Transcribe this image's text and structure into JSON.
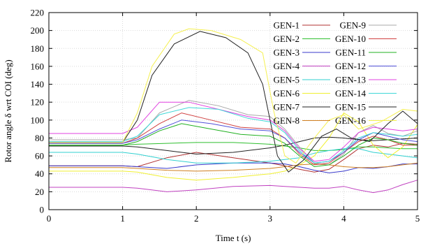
{
  "chart_data": {
    "type": "line",
    "xlabel": "Time t (s)",
    "ylabel": "Rotor angle δ wrt COI (deg)",
    "xlim": [
      0,
      5
    ],
    "ylim": [
      0,
      220
    ],
    "xticks": [
      0,
      1,
      2,
      3,
      4,
      5
    ],
    "yticks": [
      0,
      20,
      40,
      60,
      80,
      100,
      120,
      140,
      160,
      180,
      200,
      220
    ],
    "grid": true,
    "legend_position": "top-right",
    "series": [
      {
        "name": "GEN-1",
        "color": "#b03030",
        "points": [
          [
            0,
            49
          ],
          [
            1,
            49
          ],
          [
            1.2,
            48
          ],
          [
            1.6,
            58
          ],
          [
            2.0,
            64
          ],
          [
            2.5,
            58
          ],
          [
            3.0,
            52
          ],
          [
            3.2,
            49
          ],
          [
            3.4,
            45
          ],
          [
            3.6,
            42
          ],
          [
            3.8,
            45
          ],
          [
            4.0,
            56
          ],
          [
            4.2,
            68
          ],
          [
            4.4,
            72
          ],
          [
            4.6,
            70
          ],
          [
            4.8,
            74
          ],
          [
            5.0,
            73
          ]
        ]
      },
      {
        "name": "GEN-2",
        "color": "#2fbf2f",
        "points": [
          [
            0,
            72
          ],
          [
            1,
            72
          ],
          [
            1.2,
            73
          ],
          [
            1.6,
            74
          ],
          [
            2.0,
            75
          ],
          [
            2.5,
            75
          ],
          [
            3.0,
            73
          ],
          [
            3.2,
            71
          ],
          [
            3.4,
            69
          ],
          [
            3.6,
            66
          ],
          [
            3.8,
            66
          ],
          [
            4.0,
            67
          ],
          [
            4.2,
            70
          ],
          [
            4.4,
            70
          ],
          [
            4.6,
            69
          ],
          [
            4.8,
            68
          ],
          [
            5.0,
            68
          ]
        ]
      },
      {
        "name": "GEN-3",
        "color": "#3a3acb",
        "points": [
          [
            0,
            49
          ],
          [
            1,
            49
          ],
          [
            1.2,
            48
          ],
          [
            1.6,
            46
          ],
          [
            2.0,
            50
          ],
          [
            2.5,
            52
          ],
          [
            3.0,
            52
          ],
          [
            3.2,
            51
          ],
          [
            3.4,
            48
          ],
          [
            3.6,
            44
          ],
          [
            3.8,
            41
          ],
          [
            4.0,
            43
          ],
          [
            4.2,
            47
          ],
          [
            4.4,
            46
          ],
          [
            4.6,
            48
          ],
          [
            4.8,
            51
          ],
          [
            5.0,
            51
          ]
        ]
      },
      {
        "name": "GEN-4",
        "color": "#c040c0",
        "points": [
          [
            0,
            25
          ],
          [
            1,
            25
          ],
          [
            1.2,
            24
          ],
          [
            1.6,
            20
          ],
          [
            2.0,
            22
          ],
          [
            2.5,
            26
          ],
          [
            3.0,
            27
          ],
          [
            3.2,
            26
          ],
          [
            3.4,
            25
          ],
          [
            3.6,
            24
          ],
          [
            3.8,
            24
          ],
          [
            4.0,
            26
          ],
          [
            4.2,
            22
          ],
          [
            4.4,
            19
          ],
          [
            4.6,
            22
          ],
          [
            4.8,
            28
          ],
          [
            5.0,
            33
          ]
        ]
      },
      {
        "name": "GEN-5",
        "color": "#30d0d0",
        "points": [
          [
            0,
            64
          ],
          [
            1,
            64
          ],
          [
            1.2,
            62
          ],
          [
            1.6,
            56
          ],
          [
            2.0,
            52
          ],
          [
            2.5,
            52
          ],
          [
            3.0,
            54
          ],
          [
            3.2,
            56
          ],
          [
            3.4,
            58
          ],
          [
            3.6,
            63
          ],
          [
            3.8,
            66
          ],
          [
            4.0,
            68
          ],
          [
            4.2,
            68
          ],
          [
            4.4,
            64
          ],
          [
            4.6,
            62
          ],
          [
            4.8,
            60
          ],
          [
            5.0,
            58
          ]
        ]
      },
      {
        "name": "GEN-6",
        "color": "#f0f030",
        "points": [
          [
            0,
            43
          ],
          [
            1,
            43
          ],
          [
            1.2,
            42
          ],
          [
            1.6,
            36
          ],
          [
            2.0,
            33
          ],
          [
            2.5,
            36
          ],
          [
            3.0,
            40
          ],
          [
            3.2,
            43
          ],
          [
            3.4,
            50
          ],
          [
            3.6,
            60
          ],
          [
            3.8,
            80
          ],
          [
            4.0,
            108
          ],
          [
            4.2,
            98
          ],
          [
            4.4,
            72
          ],
          [
            4.6,
            58
          ],
          [
            4.8,
            70
          ],
          [
            5.0,
            95
          ]
        ]
      },
      {
        "name": "GEN-7",
        "color": "#222222",
        "points": [
          [
            0,
            71
          ],
          [
            1,
            71
          ],
          [
            1.2,
            70
          ],
          [
            1.6,
            66
          ],
          [
            2.0,
            62
          ],
          [
            2.5,
            64
          ],
          [
            3.0,
            69
          ],
          [
            3.2,
            72
          ],
          [
            3.4,
            76
          ],
          [
            3.6,
            80
          ],
          [
            3.8,
            81
          ],
          [
            4.0,
            80
          ],
          [
            4.2,
            78
          ],
          [
            4.4,
            77
          ],
          [
            4.6,
            78
          ],
          [
            4.8,
            79
          ],
          [
            5.0,
            80
          ]
        ]
      },
      {
        "name": "GEN-8",
        "color": "#d08020",
        "points": [
          [
            0,
            47
          ],
          [
            1,
            47
          ],
          [
            1.2,
            46
          ],
          [
            1.6,
            44
          ],
          [
            2.0,
            43
          ],
          [
            2.5,
            44
          ],
          [
            3.0,
            46
          ],
          [
            3.2,
            48
          ],
          [
            3.4,
            50
          ],
          [
            3.6,
            51
          ],
          [
            3.8,
            50
          ],
          [
            4.0,
            48
          ],
          [
            4.2,
            47
          ],
          [
            4.4,
            47
          ],
          [
            4.6,
            48
          ],
          [
            4.8,
            50
          ],
          [
            5.0,
            52
          ]
        ]
      },
      {
        "name": "GEN-9",
        "color": "#a8a8a8",
        "points": [
          [
            0,
            78
          ],
          [
            1,
            78
          ],
          [
            1.2,
            80
          ],
          [
            1.5,
            108
          ],
          [
            1.9,
            122
          ],
          [
            2.3,
            116
          ],
          [
            2.7,
            106
          ],
          [
            3.0,
            104
          ],
          [
            3.2,
            90
          ],
          [
            3.4,
            70
          ],
          [
            3.6,
            52
          ],
          [
            3.8,
            50
          ],
          [
            4.0,
            62
          ],
          [
            4.2,
            86
          ],
          [
            4.4,
            94
          ],
          [
            4.6,
            85
          ],
          [
            4.8,
            82
          ],
          [
            5.0,
            88
          ]
        ]
      },
      {
        "name": "GEN-10",
        "color": "#d04040",
        "points": [
          [
            0,
            74
          ],
          [
            1,
            74
          ],
          [
            1.2,
            80
          ],
          [
            1.5,
            96
          ],
          [
            1.8,
            108
          ],
          [
            2.2,
            100
          ],
          [
            2.6,
            92
          ],
          [
            3.0,
            90
          ],
          [
            3.2,
            80
          ],
          [
            3.4,
            62
          ],
          [
            3.6,
            50
          ],
          [
            3.8,
            52
          ],
          [
            4.0,
            64
          ],
          [
            4.2,
            76
          ],
          [
            4.4,
            82
          ],
          [
            4.6,
            78
          ],
          [
            4.8,
            72
          ],
          [
            5.0,
            72
          ]
        ]
      },
      {
        "name": "GEN-11",
        "color": "#20b020",
        "points": [
          [
            0,
            72
          ],
          [
            1,
            72
          ],
          [
            1.2,
            76
          ],
          [
            1.5,
            88
          ],
          [
            1.8,
            96
          ],
          [
            2.2,
            90
          ],
          [
            2.6,
            84
          ],
          [
            3.0,
            82
          ],
          [
            3.2,
            74
          ],
          [
            3.4,
            60
          ],
          [
            3.6,
            48
          ],
          [
            3.8,
            50
          ],
          [
            4.0,
            60
          ],
          [
            4.2,
            72
          ],
          [
            4.4,
            80
          ],
          [
            4.6,
            78
          ],
          [
            4.8,
            74
          ],
          [
            5.0,
            72
          ]
        ]
      },
      {
        "name": "GEN-12",
        "color": "#5050d8",
        "points": [
          [
            0,
            74
          ],
          [
            1,
            74
          ],
          [
            1.2,
            78
          ],
          [
            1.5,
            90
          ],
          [
            1.8,
            100
          ],
          [
            2.2,
            96
          ],
          [
            2.6,
            90
          ],
          [
            3.0,
            88
          ],
          [
            3.2,
            80
          ],
          [
            3.4,
            64
          ],
          [
            3.6,
            52
          ],
          [
            3.8,
            54
          ],
          [
            4.0,
            64
          ],
          [
            4.2,
            78
          ],
          [
            4.4,
            86
          ],
          [
            4.6,
            82
          ],
          [
            4.8,
            78
          ],
          [
            5.0,
            76
          ]
        ]
      },
      {
        "name": "GEN-13",
        "color": "#e040e0",
        "points": [
          [
            0,
            85
          ],
          [
            1,
            85
          ],
          [
            1.2,
            92
          ],
          [
            1.5,
            120
          ],
          [
            1.9,
            120
          ],
          [
            2.3,
            112
          ],
          [
            2.7,
            104
          ],
          [
            3.0,
            100
          ],
          [
            3.2,
            88
          ],
          [
            3.4,
            68
          ],
          [
            3.6,
            54
          ],
          [
            3.8,
            56
          ],
          [
            4.0,
            70
          ],
          [
            4.2,
            86
          ],
          [
            4.4,
            92
          ],
          [
            4.6,
            90
          ],
          [
            4.8,
            88
          ],
          [
            5.0,
            90
          ]
        ]
      },
      {
        "name": "GEN-14",
        "color": "#40d8d8",
        "points": [
          [
            0,
            76
          ],
          [
            1,
            76
          ],
          [
            1.2,
            82
          ],
          [
            1.5,
            106
          ],
          [
            1.9,
            114
          ],
          [
            2.3,
            112
          ],
          [
            2.7,
            102
          ],
          [
            3.0,
            98
          ],
          [
            3.2,
            86
          ],
          [
            3.4,
            66
          ],
          [
            3.6,
            52
          ],
          [
            3.8,
            54
          ],
          [
            4.0,
            66
          ],
          [
            4.2,
            80
          ],
          [
            4.4,
            86
          ],
          [
            4.6,
            84
          ],
          [
            4.8,
            82
          ],
          [
            5.0,
            84
          ]
        ]
      },
      {
        "name": "GEN-15",
        "color": "#222222",
        "points": [
          [
            0,
            75
          ],
          [
            1,
            75
          ],
          [
            1.2,
            100
          ],
          [
            1.4,
            150
          ],
          [
            1.7,
            185
          ],
          [
            2.05,
            199
          ],
          [
            2.4,
            192
          ],
          [
            2.7,
            175
          ],
          [
            2.9,
            140
          ],
          [
            3.1,
            60
          ],
          [
            3.25,
            42
          ],
          [
            3.45,
            55
          ],
          [
            3.7,
            82
          ],
          [
            3.9,
            90
          ],
          [
            4.1,
            80
          ],
          [
            4.35,
            76
          ],
          [
            4.6,
            96
          ],
          [
            4.8,
            110
          ],
          [
            5.0,
            96
          ]
        ]
      },
      {
        "name": "GEN-16",
        "color": "#f5f050",
        "points": [
          [
            0,
            75
          ],
          [
            1,
            75
          ],
          [
            1.2,
            108
          ],
          [
            1.4,
            160
          ],
          [
            1.7,
            196
          ],
          [
            1.9,
            202
          ],
          [
            2.2,
            200
          ],
          [
            2.6,
            190
          ],
          [
            2.9,
            175
          ],
          [
            3.05,
            110
          ],
          [
            3.2,
            60
          ],
          [
            3.35,
            52
          ],
          [
            3.6,
            80
          ],
          [
            3.8,
            100
          ],
          [
            4.0,
            106
          ],
          [
            4.2,
            90
          ],
          [
            4.5,
            98
          ],
          [
            4.8,
            112
          ],
          [
            5.0,
            110
          ]
        ]
      }
    ]
  }
}
